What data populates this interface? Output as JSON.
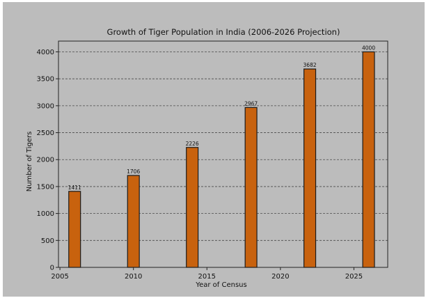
{
  "chart_data": {
    "type": "bar",
    "title": "Growth of Tiger Population in India (2006-2026 Projection)",
    "xlabel": "Year of Census",
    "ylabel": "Number of Tigers",
    "x": [
      2006,
      2010,
      2014,
      2018,
      2022,
      2026
    ],
    "values": [
      1411,
      1706,
      2226,
      2967,
      3682,
      4000
    ],
    "data_labels": [
      "1411",
      "1706",
      "2226",
      "2967",
      "3682",
      "4000"
    ],
    "xlim": [
      2004.9,
      2027.3
    ],
    "ylim": [
      0,
      4200
    ],
    "xticks": [
      2005,
      2010,
      2015,
      2020,
      2025
    ],
    "yticks": [
      0,
      500,
      1000,
      1500,
      2000,
      2500,
      3000,
      3500,
      4000
    ],
    "grid": "horizontal dashed",
    "legend": "none",
    "colors": {
      "background": "#bcbcbc",
      "bar_fill": "#c8620e",
      "bar_edge": "#1a1a1a",
      "grid": "#4a4a4a",
      "text": "#111111"
    }
  }
}
